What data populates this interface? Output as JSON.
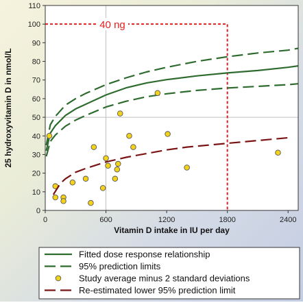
{
  "chart_data": {
    "type": "line",
    "xlabel": "Vitamin D intake in IU per day",
    "ylabel": "25 hydroxyvitamin D in nmol/L",
    "xlim": [
      0,
      2500
    ],
    "ylim": [
      0,
      110
    ],
    "xticks": [
      0,
      600,
      1200,
      1800,
      2400
    ],
    "yticks": [
      0,
      10,
      20,
      30,
      40,
      50,
      60,
      70,
      80,
      90,
      100,
      110
    ],
    "grid": true,
    "gridlines": {
      "x": [
        600
      ],
      "y": [
        50
      ]
    },
    "annotation": {
      "text": "40 ng",
      "x": 1800,
      "y": 100,
      "color": "#e02020"
    },
    "series": [
      {
        "name": "Fitted dose response relationship",
        "kind": "line",
        "style": "solid",
        "color": "#2e6b2e",
        "x": [
          10,
          50,
          100,
          200,
          300,
          400,
          600,
          800,
          1000,
          1200,
          1500,
          1800,
          2100,
          2400,
          2500
        ],
        "y": [
          32,
          41.5,
          45.5,
          51,
          54.5,
          57,
          62,
          65.8,
          68.4,
          70.2,
          72.2,
          73.8,
          75.1,
          76.8,
          77.6
        ]
      },
      {
        "name": "95% prediction limits",
        "kind": "line",
        "style": "dashed",
        "color": "#2e6b2e",
        "x": [
          10,
          50,
          100,
          200,
          300,
          400,
          600,
          800,
          1000,
          1200,
          1500,
          1800,
          2100,
          2400,
          2500
        ],
        "y": [
          35,
          46,
          50.5,
          56.5,
          60,
          62.8,
          67.5,
          71.2,
          74.3,
          76.8,
          80,
          82.5,
          84.5,
          86,
          87
        ]
      },
      {
        "name": "95% prediction limits",
        "kind": "line",
        "style": "dashed",
        "color": "#2e6b2e",
        "x": [
          10,
          50,
          100,
          200,
          300,
          400,
          600,
          800,
          1000,
          1200,
          1500,
          1800,
          2100,
          2400,
          2500
        ],
        "y": [
          29,
          37,
          40.5,
          45.2,
          48.5,
          51,
          55.5,
          58.6,
          61,
          62.6,
          64.4,
          65.7,
          66.6,
          67.5,
          68
        ]
      },
      {
        "name": "Study average minus 2 standard deviations",
        "kind": "scatter",
        "color": "#f2d21b",
        "x": [
          40,
          100,
          100,
          180,
          180,
          270,
          400,
          450,
          480,
          570,
          600,
          620,
          690,
          710,
          720,
          740,
          830,
          870,
          1110,
          1210,
          1400,
          2300
        ],
        "y": [
          40,
          13,
          7,
          7,
          5,
          15,
          17,
          4,
          34,
          12,
          28,
          24,
          17,
          22,
          25,
          52,
          40,
          34,
          63,
          41,
          23,
          31
        ]
      },
      {
        "name": "Re-estimated lower 95% prediction limit",
        "kind": "line",
        "style": "dashed",
        "color": "#7a1414",
        "x": [
          80,
          150,
          200,
          300,
          400,
          600,
          800,
          1000,
          1200,
          1400,
          1600,
          1800,
          2000,
          2200,
          2400
        ],
        "y": [
          8.5,
          14.5,
          17,
          20.5,
          22.5,
          26,
          28.5,
          30.5,
          32.5,
          34,
          35,
          36,
          37,
          38,
          39
        ]
      }
    ]
  }
}
